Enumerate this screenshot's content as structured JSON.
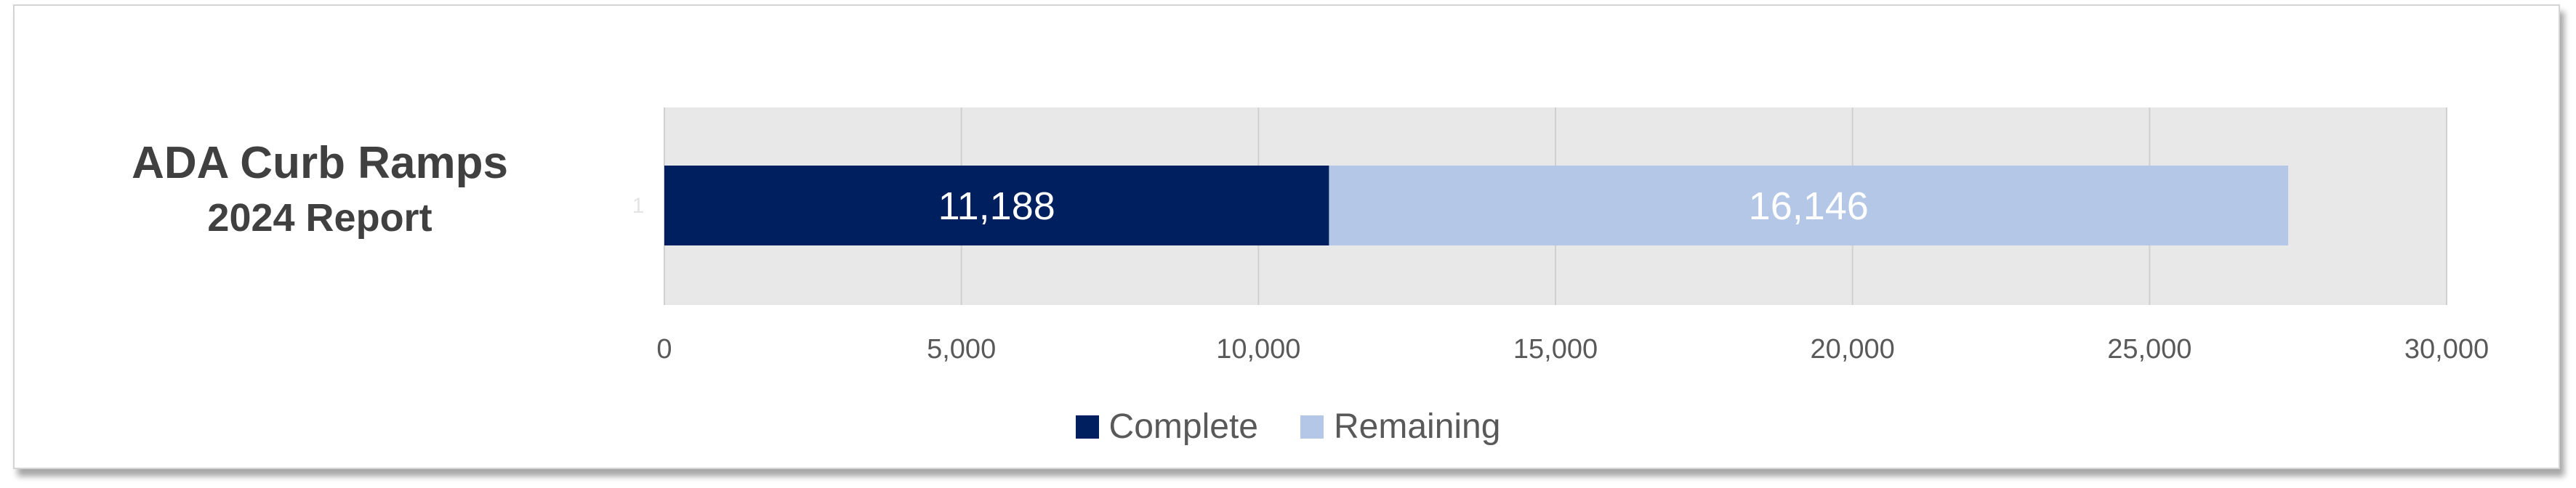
{
  "title": {
    "line1": "ADA Curb Ramps",
    "line2": "2024 Report"
  },
  "colors": {
    "complete": "#001F5F",
    "remaining": "#B4C7E7",
    "plot_bg": "#E8E8E8",
    "gridline": "#D0D0D0",
    "tick_text": "#595959"
  },
  "chart_data": {
    "type": "bar",
    "orientation": "horizontal",
    "stacked": true,
    "categories": [
      "1"
    ],
    "series": [
      {
        "name": "Complete",
        "values": [
          11188
        ],
        "labels": [
          "11,188"
        ]
      },
      {
        "name": "Remaining",
        "values": [
          16146
        ],
        "labels": [
          "16,146"
        ]
      }
    ],
    "xlim": [
      0,
      30000
    ],
    "x_ticks": [
      0,
      5000,
      10000,
      15000,
      20000,
      25000,
      30000
    ],
    "x_tick_labels": [
      "0",
      "5,000",
      "10,000",
      "15,000",
      "20,000",
      "25,000",
      "30,000"
    ],
    "grid": true,
    "legend_position": "bottom"
  }
}
